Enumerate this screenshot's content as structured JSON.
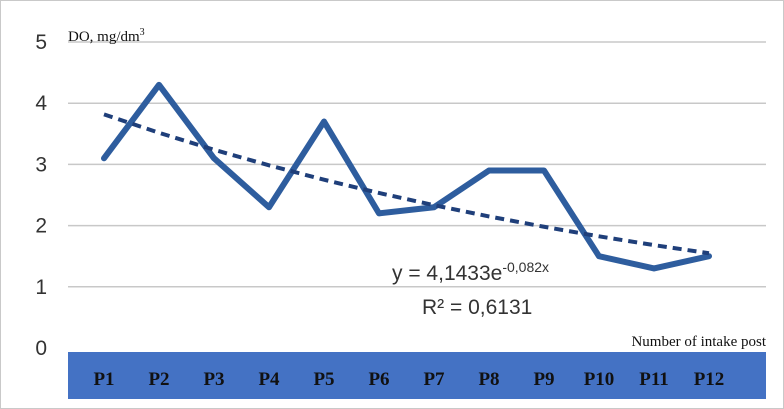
{
  "chart_data": {
    "type": "line",
    "title": "",
    "ylabel": "DO, mg/dm",
    "ylabel_sup": "3",
    "xlabel": "Number of intake post",
    "categories": [
      "P1",
      "P2",
      "P3",
      "P4",
      "P5",
      "P6",
      "P7",
      "P8",
      "P9",
      "P10",
      "P11",
      "P12"
    ],
    "ylim": [
      0,
      5
    ],
    "yticks": [
      0,
      1,
      2,
      3,
      4,
      5
    ],
    "grid": true,
    "series": [
      {
        "values": [
          3.1,
          4.3,
          3.1,
          2.3,
          3.7,
          2.2,
          2.3,
          2.9,
          2.9,
          1.5,
          1.3,
          1.5
        ],
        "color": "#2e5d9e"
      }
    ],
    "trendline": {
      "type": "exponential",
      "a": 4.1433,
      "b": -0.082,
      "color": "#1f3f7a",
      "equation_base": "y = 4,1433e",
      "equation_exp": "-0,082x",
      "r_squared": "R² = 0,6131"
    },
    "category_band_color": "#4472c4"
  }
}
